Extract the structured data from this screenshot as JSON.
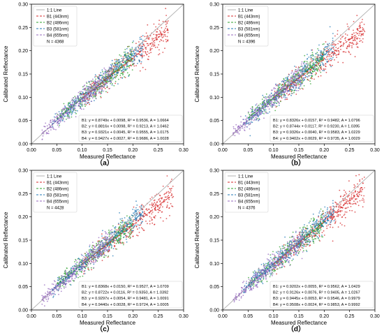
{
  "panel_style": {
    "series_colors": [
      "#d62728",
      "#2ca02c",
      "#1f77b4",
      "#9467bd"
    ],
    "line_colors": [
      "#d62728",
      "#2ca02c",
      "#1f77b4",
      "#9467bd"
    ],
    "one_to_one_color": "#b0b0b0"
  },
  "chart_data": [
    {
      "panel_label": "（a）",
      "type": "scatter",
      "xlabel": "Measured Reflectance",
      "ylabel": "Calibrated Reflectance",
      "xlim": [
        0.0,
        0.3
      ],
      "ylim": [
        0.0,
        0.3
      ],
      "xticks": [
        "0.00",
        "0.05",
        "0.10",
        "0.15",
        "0.20",
        "0.25",
        "0.30"
      ],
      "yticks": [
        "0.00",
        "0.05",
        "0.10",
        "0.15",
        "0.20",
        "0.25",
        "0.30"
      ],
      "grid": false,
      "legend": {
        "position": "top-left",
        "entries": [
          "1:1 Line",
          "B1 (443nm)",
          "B2 (486nm)",
          "B3 (581nm)",
          "B4 (655nm)"
        ],
        "count_label": "N = 4368"
      },
      "fit_text": [
        "B1:  y = 0.8749x + 0.0098,  R² = 0.9536,  A = 1.0664",
        "B2:  y = 0.8816x + 0.0098,  R² = 0.9213,  A = 1.0462",
        "B3:  y = 0.9321x + 0.0045,  R² = 0.9555,  A = 1.0175",
        "B4:  y = 0.9427x + 0.0027,  R² = 0.9686,  A = 1.0028"
      ],
      "series": [
        {
          "name": "B1 (443nm)",
          "slope": 0.8749,
          "intercept": 0.0098,
          "x_range": [
            0.1,
            0.27
          ]
        },
        {
          "name": "B2 (486nm)",
          "slope": 0.8816,
          "intercept": 0.0098,
          "x_range": [
            0.05,
            0.2
          ]
        },
        {
          "name": "B3 (581nm)",
          "slope": 0.9321,
          "intercept": 0.0045,
          "x_range": [
            0.04,
            0.22
          ]
        },
        {
          "name": "B4 (655nm)",
          "slope": 0.9427,
          "intercept": 0.0027,
          "x_range": [
            0.02,
            0.16
          ]
        }
      ]
    },
    {
      "panel_label": "（b）",
      "type": "scatter",
      "xlabel": "Measured Reflectance",
      "ylabel": "Calibrated Reflectance",
      "xlim": [
        0.0,
        0.3
      ],
      "ylim": [
        0.0,
        0.3
      ],
      "xticks": [
        "0.00",
        "0.05",
        "0.10",
        "0.15",
        "0.20",
        "0.25",
        "0.30"
      ],
      "yticks": [
        "0.00",
        "0.05",
        "0.10",
        "0.15",
        "0.20",
        "0.25",
        "0.30"
      ],
      "grid": false,
      "legend": {
        "position": "top-left",
        "entries": [
          "1:1 Line",
          "B1 (443nm)",
          "B2 (486nm)",
          "B3 (581nm)",
          "B4 (655nm)"
        ],
        "count_label": "N = 4396"
      },
      "fit_text": [
        "B1:  y = 0.8326x + 0.0157,  R² = 0.9482,  A = 1.0796",
        "B2:  y = 0.8744x + 0.0117,  R² = 0.9230,  A = 1.0395",
        "B3:  y = 0.9326x + 0.0040,  R² = 0.9583,  A = 1.0229",
        "B4:  y = 0.9402x + 0.0029,  R² = 0.9735,  A = 1.0029"
      ],
      "series": [
        {
          "name": "B1 (443nm)",
          "slope": 0.8326,
          "intercept": 0.0157,
          "x_range": [
            0.1,
            0.28
          ]
        },
        {
          "name": "B2 (486nm)",
          "slope": 0.8744,
          "intercept": 0.0117,
          "x_range": [
            0.05,
            0.2
          ]
        },
        {
          "name": "B3 (581nm)",
          "slope": 0.9326,
          "intercept": 0.004,
          "x_range": [
            0.04,
            0.22
          ]
        },
        {
          "name": "B4 (655nm)",
          "slope": 0.9402,
          "intercept": 0.0029,
          "x_range": [
            0.02,
            0.16
          ]
        }
      ]
    },
    {
      "panel_label": "（c）",
      "type": "scatter",
      "xlabel": "Measured Reflectance",
      "ylabel": "Calibrated Reflectance",
      "xlim": [
        0.0,
        0.3
      ],
      "ylim": [
        0.0,
        0.3
      ],
      "xticks": [
        "0.00",
        "0.05",
        "0.10",
        "0.15",
        "0.20",
        "0.25",
        "0.30"
      ],
      "yticks": [
        "0.00",
        "0.05",
        "0.10",
        "0.15",
        "0.20",
        "0.25",
        "0.30"
      ],
      "grid": false,
      "legend": {
        "position": "top-left",
        "entries": [
          "1:1 Line",
          "B1 (443nm)",
          "B2 (486nm)",
          "B3 (581nm)",
          "B4 (655nm)"
        ],
        "count_label": "N = 4428"
      },
      "fit_text": [
        "B1:  y = 0.8368x + 0.0150,  R² = 0.9527,  A = 1.0709",
        "B2:  y = 0.8722x + 0.0116,  R² = 0.9350,  A = 1.0392",
        "B3:  y = 0.9297x + 0.0054,  R² = 0.9481,  A = 1.0091",
        "B4:  y = 0.9440x + 0.0028,  R² = 0.9724,  A = 1.0005"
      ],
      "series": [
        {
          "name": "B1 (443nm)",
          "slope": 0.8368,
          "intercept": 0.015,
          "x_range": [
            0.1,
            0.28
          ]
        },
        {
          "name": "B2 (486nm)",
          "slope": 0.8722,
          "intercept": 0.0116,
          "x_range": [
            0.05,
            0.2
          ]
        },
        {
          "name": "B3 (581nm)",
          "slope": 0.9297,
          "intercept": 0.0054,
          "x_range": [
            0.04,
            0.22
          ]
        },
        {
          "name": "B4 (655nm)",
          "slope": 0.944,
          "intercept": 0.0028,
          "x_range": [
            0.02,
            0.16
          ]
        }
      ]
    },
    {
      "panel_label": "（d）",
      "type": "scatter",
      "xlabel": "Measured Reflectance",
      "ylabel": "Calibrated Reflectance",
      "xlim": [
        0.0,
        0.3
      ],
      "ylim": [
        0.0,
        0.3
      ],
      "xticks": [
        "0.00",
        "0.05",
        "0.10",
        "0.15",
        "0.20",
        "0.25",
        "0.30"
      ],
      "yticks": [
        "0.00",
        "0.05",
        "0.10",
        "0.15",
        "0.20",
        "0.25",
        "0.30"
      ],
      "grid": false,
      "legend": {
        "position": "top-left",
        "entries": [
          "1:1 Line",
          "B1 (443nm)",
          "B2 (486nm)",
          "B3 (581nm)",
          "B4 (655nm)"
        ],
        "count_label": "N = 4376"
      },
      "fit_text": [
        "B1:  y = 0.9202x + 0.0055,  R² = 0.9562,  A = 1.0429",
        "B2:  y = 0.9126x + 0.0076,  R² = 0.9405,  A = 1.0267",
        "B3:  y = 0.9445x + 0.0053,  R² = 0.9546,  A = 0.9979",
        "B4:  y = 0.9508x + 0.0024,  R² = 0.9853,  A = 0.9992"
      ],
      "series": [
        {
          "name": "B1 (443nm)",
          "slope": 0.9202,
          "intercept": 0.0055,
          "x_range": [
            0.1,
            0.28
          ]
        },
        {
          "name": "B2 (486nm)",
          "slope": 0.9126,
          "intercept": 0.0076,
          "x_range": [
            0.05,
            0.2
          ]
        },
        {
          "name": "B3 (581nm)",
          "slope": 0.9445,
          "intercept": 0.0053,
          "x_range": [
            0.04,
            0.22
          ]
        },
        {
          "name": "B4 (655nm)",
          "slope": 0.9508,
          "intercept": 0.0024,
          "x_range": [
            0.02,
            0.16
          ]
        }
      ]
    }
  ]
}
